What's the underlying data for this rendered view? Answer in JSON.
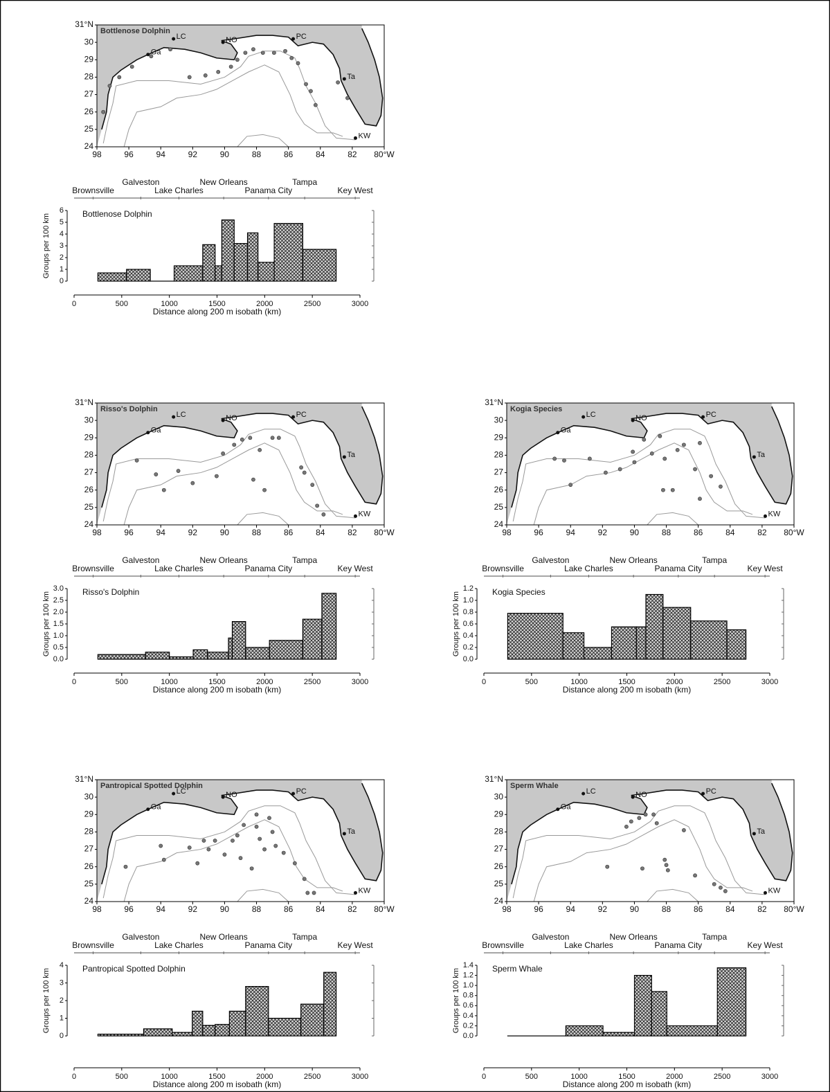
{
  "chart_data": [
    {
      "type": "map",
      "title": "Bottlenose Dolphin",
      "x": [
        97.6,
        97.2,
        96.6,
        95.8,
        94.6,
        93.4,
        92.2,
        91.2,
        90.4,
        89.6,
        89.2,
        88.7,
        88.2,
        87.6,
        86.9,
        86.2,
        85.8,
        85.4,
        84.9,
        84.6,
        84.3,
        82.9,
        82.3
      ],
      "values": [
        26.0,
        27.5,
        28.0,
        28.6,
        29.2,
        29.6,
        28.0,
        28.1,
        28.3,
        28.6,
        29.0,
        29.4,
        29.6,
        29.4,
        29.4,
        29.5,
        29.1,
        28.8,
        27.6,
        27.2,
        26.4,
        27.7,
        26.8
      ],
      "xlim": [
        98,
        80
      ],
      "ylim": [
        24,
        31
      ],
      "xticks": [
        98,
        96,
        94,
        92,
        90,
        88,
        86,
        84,
        82,
        {
          "value": 80,
          "label": "80°W"
        }
      ],
      "yticks": [
        24,
        25,
        26,
        27,
        28,
        29,
        30,
        {
          "value": 31,
          "label": "31°N"
        }
      ],
      "places": [
        {
          "label": "Ga",
          "x": 94.8,
          "y": 29.3
        },
        {
          "label": "LC",
          "x": 93.2,
          "y": 30.2
        },
        {
          "label": "NO",
          "x": 90.1,
          "y": 30.0
        },
        {
          "label": "PC",
          "x": 85.7,
          "y": 30.2
        },
        {
          "label": "Ta",
          "x": 82.5,
          "y": 27.9
        },
        {
          "label": "KW",
          "x": 81.8,
          "y": 24.5
        }
      ]
    },
    {
      "type": "histogram",
      "title": "Bottlenose Dolphin",
      "bins": [
        250,
        550,
        800,
        1050,
        1350,
        1480,
        1550,
        1680,
        1820,
        1930,
        2100,
        2400,
        2750
      ],
      "values": [
        0.7,
        1.0,
        0,
        1.3,
        3.1,
        1.3,
        5.2,
        3.2,
        4.1,
        1.6,
        4.9,
        2.7
      ],
      "xlim": [
        0,
        3000
      ],
      "xticks": [
        0,
        500,
        1000,
        1500,
        2000,
        2500,
        3000
      ],
      "ylim": [
        0,
        6
      ],
      "yticks": [
        0,
        1,
        2,
        3,
        4,
        5,
        6
      ],
      "xlabel": "Distance along 200 m isobath (km)",
      "ylabel": "Groups per 100 km",
      "locations": [
        {
          "label": "Brownsville",
          "x": 200
        },
        {
          "label": "Galveston",
          "x": 700
        },
        {
          "label": "Lake Charles",
          "x": 1100
        },
        {
          "label": "New Orleans",
          "x": 1570
        },
        {
          "label": "Panama City",
          "x": 2040
        },
        {
          "label": "Tampa",
          "x": 2420
        },
        {
          "label": "Key West",
          "x": 2950
        }
      ]
    },
    {
      "type": "map",
      "title": "Risso's Dolphin",
      "x": [
        95.5,
        94.3,
        93.8,
        92.9,
        92.0,
        90.5,
        90.1,
        89.4,
        88.9,
        88.4,
        87.8,
        87.0,
        86.6,
        88.2,
        87.5,
        85.2,
        85.0,
        84.5,
        84.2,
        83.8
      ],
      "values": [
        27.7,
        26.9,
        26.0,
        27.1,
        26.4,
        26.8,
        28.1,
        28.6,
        28.9,
        29.0,
        28.3,
        29.0,
        29.0,
        26.6,
        26.0,
        27.3,
        27.0,
        26.3,
        25.1,
        24.6
      ],
      "xlim": [
        98,
        80
      ],
      "ylim": [
        24,
        31
      ],
      "xticks": [
        98,
        96,
        94,
        92,
        90,
        88,
        86,
        84,
        82,
        {
          "value": 80,
          "label": "80°W"
        }
      ],
      "yticks": [
        24,
        25,
        26,
        27,
        28,
        29,
        30,
        {
          "value": 31,
          "label": "31°N"
        }
      ],
      "places": [
        {
          "label": "Ga",
          "x": 94.8,
          "y": 29.3
        },
        {
          "label": "LC",
          "x": 93.2,
          "y": 30.2
        },
        {
          "label": "NO",
          "x": 90.1,
          "y": 30.0
        },
        {
          "label": "PC",
          "x": 85.7,
          "y": 30.2
        },
        {
          "label": "Ta",
          "x": 82.5,
          "y": 27.9
        },
        {
          "label": "KW",
          "x": 81.8,
          "y": 24.5
        }
      ]
    },
    {
      "type": "histogram",
      "title": "Risso's Dolphin",
      "bins": [
        250,
        750,
        1000,
        1250,
        1400,
        1620,
        1660,
        1800,
        2050,
        2400,
        2600,
        2750
      ],
      "values": [
        0.2,
        0.3,
        0.1,
        0.4,
        0.3,
        0.9,
        1.6,
        0.5,
        0.8,
        1.7,
        2.8
      ],
      "xlim": [
        0,
        3000
      ],
      "xticks": [
        0,
        500,
        1000,
        1500,
        2000,
        2500,
        3000
      ],
      "ylim": [
        0,
        3
      ],
      "yticks": [
        {
          "value": 0,
          "label": "0.0"
        },
        0.5,
        {
          "value": 1,
          "label": "1.0"
        },
        1.5,
        {
          "value": 2,
          "label": "2.0"
        },
        2.5,
        {
          "value": 3,
          "label": "3.0"
        }
      ],
      "xlabel": "Distance along 200 m isobath (km)",
      "ylabel": "Groups per 100 km",
      "locations": [
        {
          "label": "Brownsville",
          "x": 200
        },
        {
          "label": "Galveston",
          "x": 700
        },
        {
          "label": "Lake Charles",
          "x": 1100
        },
        {
          "label": "New Orleans",
          "x": 1570
        },
        {
          "label": "Panama City",
          "x": 2040
        },
        {
          "label": "Tampa",
          "x": 2420
        },
        {
          "label": "Key West",
          "x": 2950
        }
      ]
    },
    {
      "type": "map",
      "title": "Kogia Species",
      "x": [
        95.0,
        94.4,
        92.8,
        91.8,
        90.9,
        90.1,
        90.0,
        89.4,
        88.9,
        88.4,
        88.1,
        87.3,
        86.9,
        86.2,
        85.9,
        85.2,
        84.6,
        88.2,
        87.6,
        85.9,
        94.0
      ],
      "values": [
        27.8,
        27.7,
        27.8,
        27.0,
        27.2,
        28.2,
        27.6,
        28.9,
        28.1,
        29.1,
        27.8,
        28.3,
        28.6,
        27.2,
        25.5,
        26.8,
        26.2,
        26.0,
        26.0,
        28.7,
        26.3
      ],
      "xlim": [
        98,
        80
      ],
      "ylim": [
        24,
        31
      ],
      "xticks": [
        98,
        96,
        94,
        92,
        90,
        88,
        86,
        84,
        82,
        {
          "value": 80,
          "label": "80°W"
        }
      ],
      "yticks": [
        24,
        25,
        26,
        27,
        28,
        29,
        30,
        {
          "value": 31,
          "label": "31°N"
        }
      ],
      "places": [
        {
          "label": "Ga",
          "x": 94.8,
          "y": 29.3
        },
        {
          "label": "LC",
          "x": 93.2,
          "y": 30.2
        },
        {
          "label": "NO",
          "x": 90.1,
          "y": 30.0
        },
        {
          "label": "PC",
          "x": 85.7,
          "y": 30.2
        },
        {
          "label": "Ta",
          "x": 82.5,
          "y": 27.9
        },
        {
          "label": "KW",
          "x": 81.8,
          "y": 24.5
        }
      ]
    },
    {
      "type": "histogram",
      "title": "Kogia Species",
      "bins": [
        250,
        830,
        1050,
        1340,
        1600,
        1700,
        1880,
        2170,
        2550,
        2750
      ],
      "values": [
        0.78,
        0.45,
        0.2,
        0.55,
        0.55,
        1.1,
        0.88,
        0.65,
        0.5
      ],
      "xlim": [
        0,
        3000
      ],
      "xticks": [
        0,
        500,
        1000,
        1500,
        2000,
        2500,
        3000
      ],
      "ylim": [
        0,
        1.2
      ],
      "yticks": [
        {
          "value": 0,
          "label": "0.0"
        },
        0.2,
        0.4,
        0.6,
        0.8,
        {
          "value": 1,
          "label": "1.0"
        },
        1.2
      ],
      "xlabel": "Distance along 200 m isobath (km)",
      "ylabel": "Groups per 100 km",
      "locations": [
        {
          "label": "Brownsville",
          "x": 200
        },
        {
          "label": "Galveston",
          "x": 700
        },
        {
          "label": "Lake Charles",
          "x": 1100
        },
        {
          "label": "New Orleans",
          "x": 1570
        },
        {
          "label": "Panama City",
          "x": 2040
        },
        {
          "label": "Tampa",
          "x": 2420
        },
        {
          "label": "Key West",
          "x": 2950
        }
      ]
    },
    {
      "type": "map",
      "title": "Pantropical Spotted Dolphin",
      "x": [
        96.2,
        94.0,
        93.8,
        92.2,
        91.7,
        91.3,
        91.0,
        90.6,
        90.0,
        89.5,
        89.2,
        88.8,
        88.0,
        88.0,
        87.8,
        87.2,
        87.0,
        86.8,
        86.3,
        85.6,
        85.0,
        84.8,
        84.4,
        89.0,
        88.3,
        87.5
      ],
      "values": [
        26.0,
        27.2,
        26.4,
        27.1,
        26.2,
        27.5,
        27.0,
        27.5,
        26.7,
        27.5,
        27.8,
        28.4,
        29.0,
        28.3,
        27.6,
        28.8,
        28.0,
        27.2,
        26.8,
        26.2,
        25.3,
        24.5,
        24.5,
        26.5,
        25.9,
        27.0
      ],
      "xlim": [
        98,
        80
      ],
      "ylim": [
        24,
        31
      ],
      "xticks": [
        98,
        96,
        94,
        92,
        90,
        88,
        86,
        84,
        82,
        {
          "value": 80,
          "label": "80°W"
        }
      ],
      "yticks": [
        24,
        25,
        26,
        27,
        28,
        29,
        30,
        {
          "value": 31,
          "label": "31°N"
        }
      ],
      "places": [
        {
          "label": "Ga",
          "x": 94.8,
          "y": 29.3
        },
        {
          "label": "LC",
          "x": 93.2,
          "y": 30.2
        },
        {
          "label": "NO",
          "x": 90.1,
          "y": 30.0
        },
        {
          "label": "PC",
          "x": 85.7,
          "y": 30.2
        },
        {
          "label": "Ta",
          "x": 82.5,
          "y": 27.9
        },
        {
          "label": "KW",
          "x": 81.8,
          "y": 24.5
        }
      ]
    },
    {
      "type": "histogram",
      "title": "Pantropical Spotted Dolphin",
      "bins": [
        250,
        730,
        1030,
        1240,
        1350,
        1480,
        1630,
        1800,
        2040,
        2380,
        2620,
        2750
      ],
      "values": [
        0.1,
        0.4,
        0.2,
        1.4,
        0.6,
        0.65,
        1.4,
        2.8,
        1.0,
        1.8,
        3.6
      ],
      "xlim": [
        0,
        3000
      ],
      "xticks": [
        0,
        500,
        1000,
        1500,
        2000,
        2500,
        3000
      ],
      "ylim": [
        0,
        4
      ],
      "yticks": [
        0,
        1,
        2,
        3,
        4
      ],
      "xlabel": "Distance along 200 m isobath (km)",
      "ylabel": "Groups per 100 km",
      "locations": [
        {
          "label": "Brownsville",
          "x": 200
        },
        {
          "label": "Galveston",
          "x": 700
        },
        {
          "label": "Lake Charles",
          "x": 1100
        },
        {
          "label": "New Orleans",
          "x": 1570
        },
        {
          "label": "Panama City",
          "x": 2040
        },
        {
          "label": "Tampa",
          "x": 2420
        },
        {
          "label": "Key West",
          "x": 2950
        }
      ]
    },
    {
      "type": "map",
      "title": "Sperm Whale",
      "x": [
        91.7,
        90.5,
        90.2,
        89.7,
        89.3,
        88.8,
        88.1,
        88.0,
        87.9,
        89.5,
        86.9,
        86.2,
        85.0,
        84.6,
        84.3,
        88.6
      ],
      "values": [
        26.0,
        28.3,
        28.6,
        28.8,
        29.0,
        29.0,
        26.4,
        26.1,
        25.8,
        25.9,
        28.1,
        25.5,
        25.0,
        24.8,
        24.6,
        28.5
      ],
      "xlim": [
        98,
        80
      ],
      "ylim": [
        24,
        31
      ],
      "xticks": [
        98,
        96,
        94,
        92,
        90,
        88,
        86,
        84,
        82,
        {
          "value": 80,
          "label": "80°W"
        }
      ],
      "yticks": [
        24,
        25,
        26,
        27,
        28,
        29,
        30,
        {
          "value": 31,
          "label": "31°N"
        }
      ],
      "places": [
        {
          "label": "Ga",
          "x": 94.8,
          "y": 29.3
        },
        {
          "label": "LC",
          "x": 93.2,
          "y": 30.2
        },
        {
          "label": "NO",
          "x": 90.1,
          "y": 30.0
        },
        {
          "label": "PC",
          "x": 85.7,
          "y": 30.2
        },
        {
          "label": "Ta",
          "x": 82.5,
          "y": 27.9
        },
        {
          "label": "KW",
          "x": 81.8,
          "y": 24.5
        }
      ]
    },
    {
      "type": "histogram",
      "title": "Sperm Whale",
      "bins": [
        250,
        860,
        1250,
        1580,
        1760,
        1920,
        2450,
        2750
      ],
      "values": [
        0,
        0.2,
        0.07,
        1.2,
        0.88,
        0.2,
        1.35
      ],
      "xlim": [
        0,
        3000
      ],
      "xticks": [
        0,
        500,
        1000,
        1500,
        2000,
        2500,
        3000
      ],
      "ylim": [
        0,
        1.4
      ],
      "yticks": [
        {
          "value": 0,
          "label": "0.0"
        },
        0.2,
        0.4,
        0.6,
        0.8,
        {
          "value": 1,
          "label": "1.0"
        },
        1.2,
        1.4
      ],
      "xlabel": "Distance along 200 m isobath (km)",
      "ylabel": "Groups per 100 km",
      "locations": [
        {
          "label": "Brownsville",
          "x": 200
        },
        {
          "label": "Galveston",
          "x": 700
        },
        {
          "label": "Lake Charles",
          "x": 1100
        },
        {
          "label": "New Orleans",
          "x": 1570
        },
        {
          "label": "Panama City",
          "x": 2040
        },
        {
          "label": "Tampa",
          "x": 2420
        },
        {
          "label": "Key West",
          "x": 2950
        }
      ]
    }
  ]
}
